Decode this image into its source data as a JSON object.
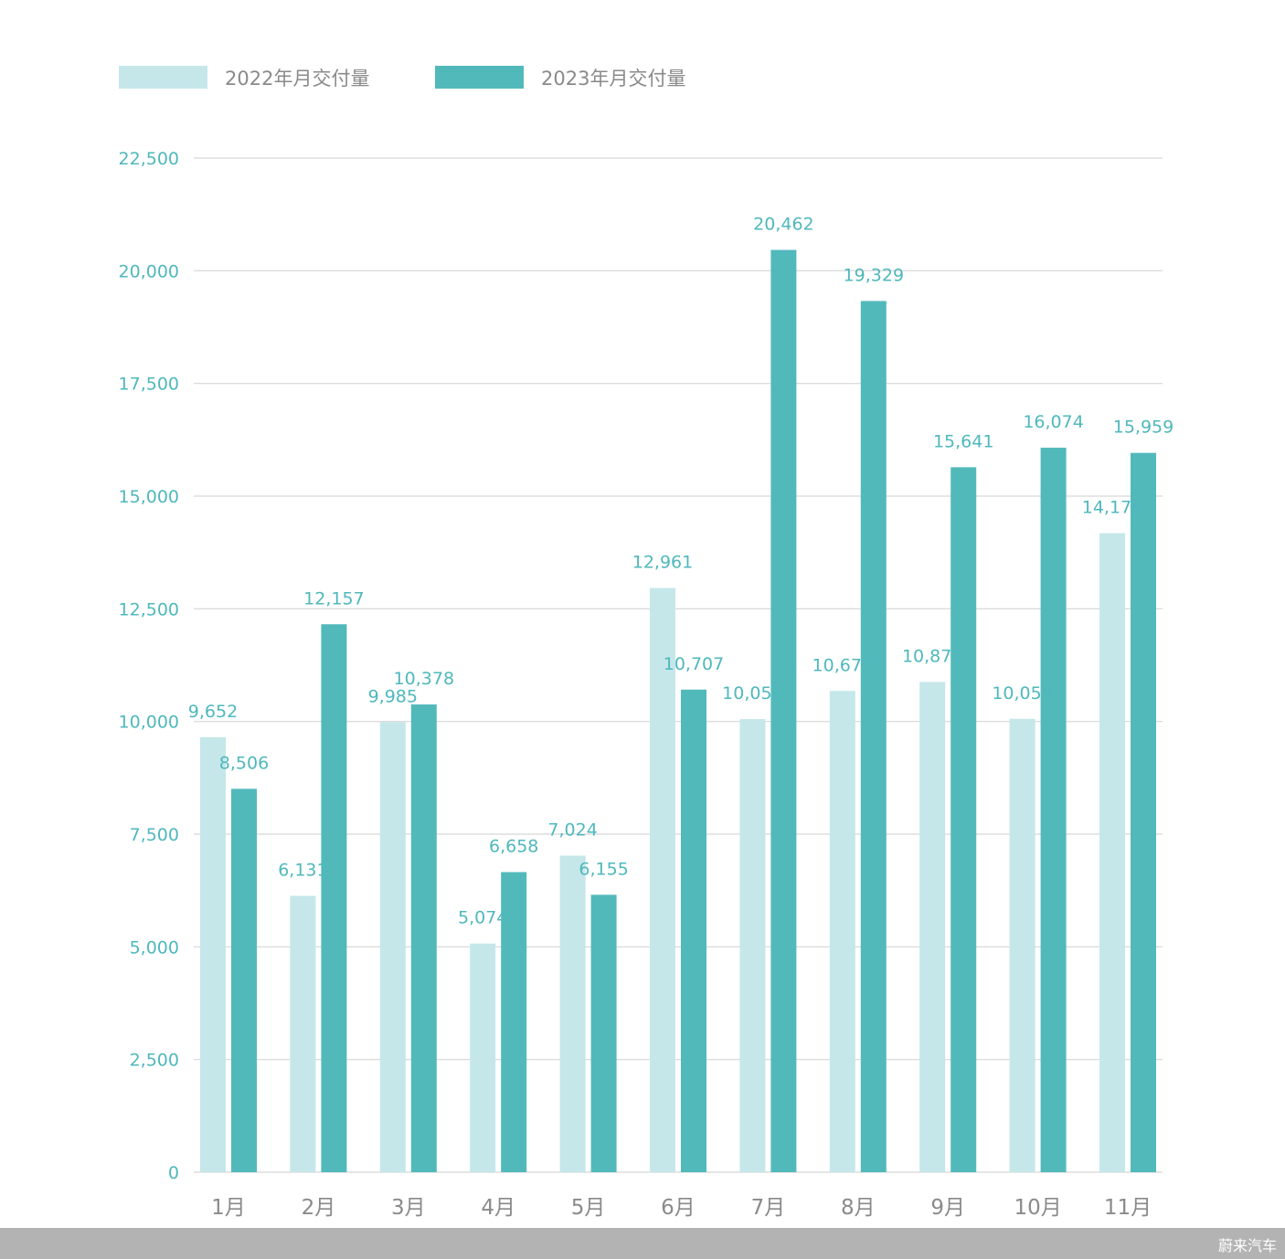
{
  "colors": {
    "series_2022": "#c5e7ea",
    "series_2023": "#52b9bb",
    "grid": "#d6d6d6",
    "axis_text": "#4fb8bc",
    "category_text": "#8a8a8a"
  },
  "chart_data": {
    "type": "bar",
    "title": "",
    "xlabel": "",
    "ylabel": "",
    "ylim": [
      0,
      22500
    ],
    "yticks": [
      0,
      2500,
      5000,
      7500,
      10000,
      12500,
      15000,
      17500,
      20000,
      22500
    ],
    "ytick_labels": [
      "0",
      "2,500",
      "5,000",
      "7,500",
      "10,000",
      "12,500",
      "15,000",
      "17,500",
      "20,000",
      "22,500"
    ],
    "grid": true,
    "legend_position": "top-left",
    "categories": [
      "1月",
      "2月",
      "3月",
      "4月",
      "5月",
      "6月",
      "7月",
      "8月",
      "9月",
      "10月",
      "11月"
    ],
    "series": [
      {
        "name": "2022年月交付量",
        "values": [
          9652,
          6131,
          9985,
          5074,
          7024,
          12961,
          10052,
          10677,
          10878,
          10059,
          14178
        ],
        "labels": [
          "9,652",
          "6,131",
          "9,985",
          "5,074",
          "7,024",
          "12,961",
          "10,052",
          "10,677",
          "10,878",
          "10,059",
          "14,178"
        ]
      },
      {
        "name": "2023年月交付量",
        "values": [
          8506,
          12157,
          10378,
          6658,
          6155,
          10707,
          20462,
          19329,
          15641,
          16074,
          15959
        ],
        "labels": [
          "8,506",
          "12,157",
          "10,378",
          "6,658",
          "6,155",
          "10,707",
          "20,462",
          "19,329",
          "15,641",
          "16,074",
          "15,959"
        ]
      }
    ]
  },
  "watermark": "蔚来汽车"
}
